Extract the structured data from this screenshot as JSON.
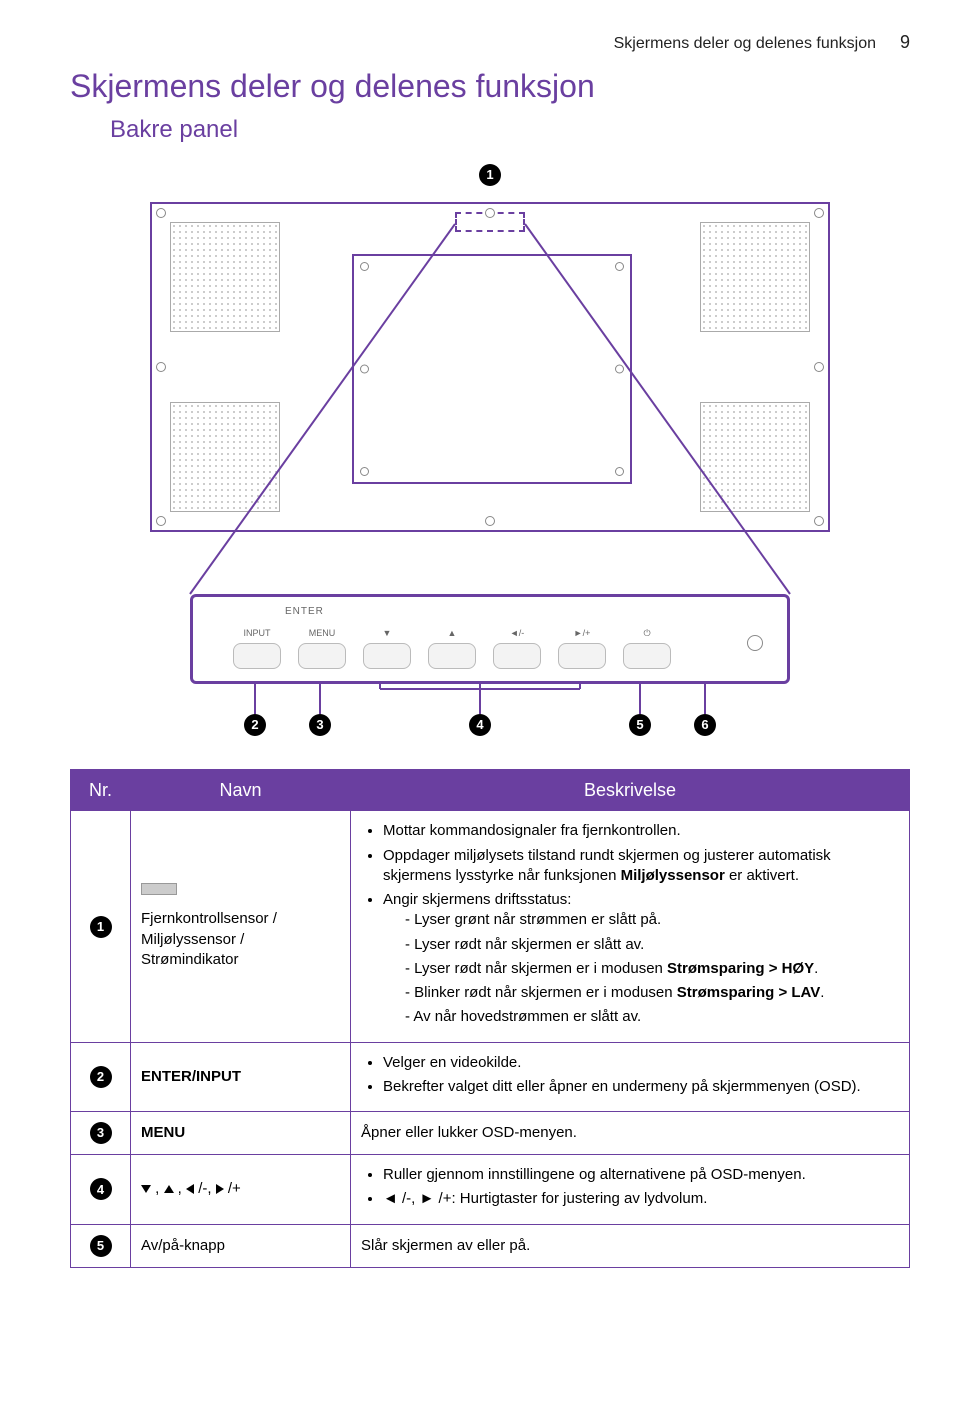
{
  "header": {
    "section_title": "Skjermens deler og delenes funksjon",
    "page_number": "9"
  },
  "titles": {
    "h1": "Skjermens deler og delenes funksjon",
    "h2": "Bakre panel"
  },
  "colors": {
    "accent": "#6a3fa0",
    "text": "#000000",
    "bg": "#ffffff"
  },
  "diagram": {
    "callouts": [
      "1",
      "2",
      "3",
      "4",
      "5",
      "6"
    ],
    "ctrl_labels": {
      "enter": "ENTER",
      "input": "INPUT",
      "menu": "MENU",
      "down": "▼",
      "up": "▲",
      "left": "◄/-",
      "right": "►/+",
      "power": "⏻"
    }
  },
  "table": {
    "headers": {
      "nr": "Nr.",
      "navn": "Navn",
      "besk": "Beskrivelse"
    },
    "col_widths": [
      "60px",
      "220px",
      "auto"
    ],
    "rows": [
      {
        "num": "1",
        "name_prefix_pill": true,
        "name": "Fjernkontrollsensor / Miljølyssensor / Strømindikator",
        "desc": {
          "bullets": [
            "Mottar kommandosignaler fra fjernkontrollen.",
            "Oppdager miljølysets tilstand rundt skjermen og justerer automatisk skjermens lysstyrke når funksjonen <b>Miljølyssensor</b> er aktivert.",
            {
              "text": "Angir skjermens driftsstatus:",
              "sub": [
                "Lyser grønt når strømmen er slått på.",
                "Lyser rødt når skjermen er slått av.",
                "Lyser rødt når skjermen er i modusen <b>Strømsparing > HØY</b>.",
                "Blinker rødt når skjermen er i modusen <b>Strømsparing > LAV</b>.",
                "Av når hovedstrømmen er slått av."
              ]
            }
          ]
        }
      },
      {
        "num": "2",
        "name": "ENTER/INPUT",
        "name_bold": true,
        "desc": {
          "bullets": [
            "Velger en videokilde.",
            "Bekrefter valget ditt eller åpner en undermeny på skjermmenyen (OSD)."
          ]
        }
      },
      {
        "num": "3",
        "name": "MENU",
        "name_bold": true,
        "desc": {
          "plain": "Åpner eller lukker OSD-menyen."
        }
      },
      {
        "num": "4",
        "name_arrows": true,
        "desc": {
          "bullets": [
            "Ruller gjennom innstillingene og alternativene på OSD-menyen.",
            "◄ /-, ► /+: Hurtigtaster for justering av lydvolum."
          ]
        }
      },
      {
        "num": "5",
        "name": "Av/på-knapp",
        "desc": {
          "plain": "Slår skjermen av eller på."
        }
      }
    ]
  }
}
